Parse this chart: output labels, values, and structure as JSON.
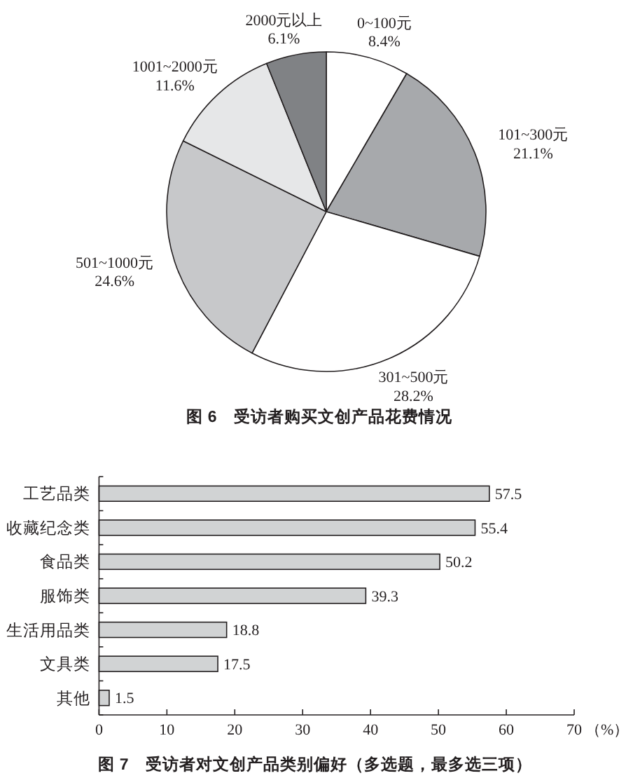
{
  "chart_data": [
    {
      "type": "pie",
      "title": "图 6　受访者购买文创产品花费情况",
      "categories": [
        "0~100元",
        "101~300元",
        "301~500元",
        "501~1000元",
        "1001~2000元",
        "2000元以上"
      ],
      "values": [
        8.4,
        21.1,
        28.2,
        24.6,
        11.6,
        6.1
      ],
      "colors": [
        "#ffffff",
        "#a7a9ac",
        "#ffffff",
        "#c7c8ca",
        "#e6e7e8",
        "#808285"
      ],
      "value_labels": [
        "8.4%",
        "21.1%",
        "28.2%",
        "24.6%",
        "11.6%",
        "6.1%"
      ]
    },
    {
      "type": "bar",
      "orientation": "horizontal",
      "title": "图 7　受访者对文创产品类别偏好（多选题，最多选三项）",
      "xlabel": "（%）",
      "categories": [
        "工艺品类",
        "收藏纪念类",
        "食品类",
        "服饰类",
        "生活用品类",
        "文具类",
        "其他"
      ],
      "values": [
        57.5,
        55.4,
        50.2,
        39.3,
        18.8,
        17.5,
        1.5
      ],
      "color": "#d1d3d4",
      "xlim": [
        0,
        70
      ],
      "xticks": [
        0,
        10,
        20,
        30,
        40,
        50,
        60,
        70
      ],
      "data_labels": true
    }
  ]
}
